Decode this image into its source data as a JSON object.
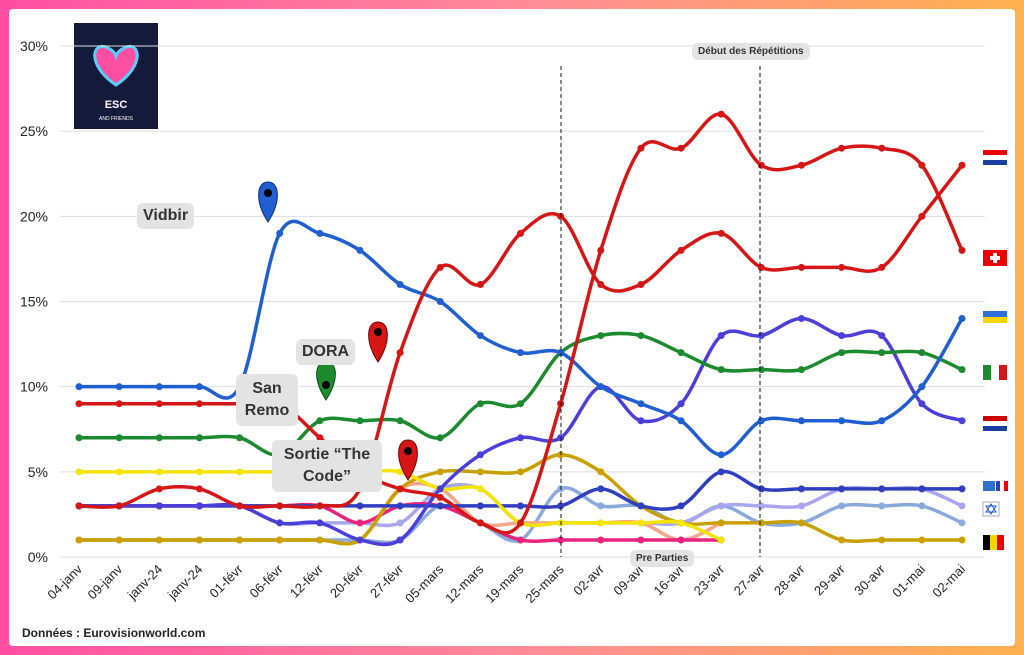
{
  "chart_data": {
    "type": "line",
    "logo": {
      "title": "ESC",
      "subtitle": "AND FRIENDS"
    },
    "categories": [
      "04-janv",
      "09-janv",
      "janv-24",
      "janv-24",
      "01-févr",
      "06-févr",
      "12-févr",
      "20-févr",
      "27-févr",
      "05-mars",
      "12-mars",
      "19-mars",
      "25-mars",
      "02-avr",
      "09-avr",
      "16-avr",
      "23-avr",
      "27-avr",
      "28-avr",
      "29-avr",
      "30-avr",
      "01-mai",
      "02-mai"
    ],
    "ylim": [
      0,
      30
    ],
    "yticks": [
      {
        "value": 0,
        "label": "0%"
      },
      {
        "value": 5,
        "label": "5%"
      },
      {
        "value": 10,
        "label": "10%"
      },
      {
        "value": 15,
        "label": "15%"
      },
      {
        "value": 20,
        "label": "20%"
      },
      {
        "value": 25,
        "label": "25%"
      },
      {
        "value": 30,
        "label": "30%"
      }
    ],
    "grid": true,
    "series": [
      {
        "color": "#8aaadc",
        "values": [
          1,
          1,
          1,
          1,
          1,
          1,
          1,
          1,
          1,
          3,
          2,
          1,
          4,
          3,
          3,
          2,
          3,
          2,
          2,
          3,
          3,
          3,
          2
        ]
      },
      {
        "color": "#a9a6ee",
        "values": [
          3,
          3,
          3,
          3,
          3,
          2,
          2,
          2,
          2,
          4,
          4,
          2,
          2,
          2,
          2,
          2,
          3,
          3,
          3,
          4,
          4,
          4,
          3
        ]
      },
      {
        "color": "#f4a58a",
        "values": [
          1,
          1,
          1,
          1,
          1,
          1,
          1,
          1,
          4,
          4,
          2,
          2,
          2,
          2,
          2,
          1,
          2,
          null,
          null,
          null,
          null,
          null,
          null
        ]
      },
      {
        "color": "#e8247e",
        "values": [
          3,
          3,
          3,
          3,
          3,
          3,
          3,
          2,
          3,
          3,
          2,
          1,
          1,
          1,
          1,
          1,
          1,
          null,
          null,
          null,
          null,
          null,
          null
        ]
      },
      {
        "color": "#c9a000",
        "values": [
          1,
          1,
          1,
          1,
          1,
          1,
          1,
          1,
          4,
          5,
          5,
          5,
          6,
          5,
          3,
          2,
          2,
          2,
          2,
          1,
          1,
          1,
          1
        ]
      },
      {
        "color": "#2f3fbf",
        "values": [
          3,
          3,
          3,
          3,
          3,
          3,
          3,
          3,
          3,
          3,
          3,
          3,
          3,
          4,
          3,
          3,
          5,
          4,
          4,
          4,
          4,
          4,
          4
        ]
      },
      {
        "color": "#f5e400",
        "values": [
          5,
          5,
          5,
          5,
          5,
          5,
          5,
          5,
          5,
          4,
          4,
          2,
          2,
          2,
          2,
          2,
          1,
          null,
          null,
          null,
          null,
          null,
          null
        ]
      },
      {
        "color": "#4a3fd9",
        "values": [
          3,
          3,
          3,
          3,
          3,
          2,
          2,
          1,
          1,
          4,
          6,
          7,
          7,
          10,
          8,
          9,
          13,
          13,
          14,
          13,
          13,
          9,
          8
        ]
      },
      {
        "color": "#1c8a2e",
        "values": [
          7,
          7,
          7,
          7,
          7,
          6,
          8,
          8,
          8,
          7,
          9,
          9,
          12,
          13,
          13,
          12,
          11,
          11,
          11,
          12,
          12,
          12,
          11
        ]
      },
      {
        "color": "#1f5fcf",
        "values": [
          10,
          10,
          10,
          10,
          10,
          19,
          19,
          18,
          16,
          15,
          13,
          12,
          12,
          10,
          9,
          8,
          6,
          8,
          8,
          8,
          8,
          10,
          14
        ]
      },
      {
        "color": "#d61515",
        "values": [
          3,
          3,
          4,
          4,
          3,
          3,
          3,
          4,
          12,
          17,
          16,
          19,
          20,
          16,
          16,
          18,
          19,
          17,
          17,
          17,
          17,
          20,
          23
        ]
      },
      {
        "color": "#d61515",
        "values": [
          9,
          9,
          9,
          9,
          9,
          9,
          7,
          5,
          4,
          3.5,
          2,
          2,
          9,
          18,
          24,
          24,
          26,
          23,
          23,
          24,
          24,
          23,
          18
        ]
      }
    ],
    "annotations": {
      "vidbir": "Vidbir",
      "dora": "DORA",
      "sanremo": "San Remo",
      "code": "Sortie “The Code”",
      "rehearsals": "Début des Répétitions",
      "preparties": "Pre Parties"
    },
    "source": "Données : Eurovisionworld.com"
  }
}
